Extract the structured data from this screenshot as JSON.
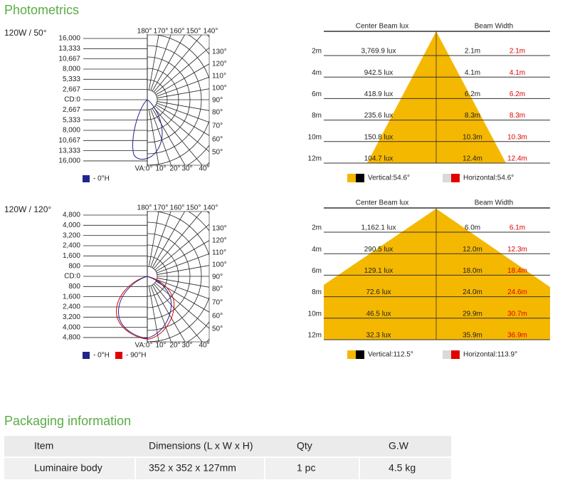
{
  "title": "Photometrics",
  "diagrams": [
    {
      "label": "120W / 50°",
      "polar": {
        "intensity_labels": [
          "16,000",
          "13,333",
          "10,667",
          "8,000",
          "5,333",
          "2,667",
          "CD:0",
          "2,667",
          "5,333",
          "8,000",
          "10,667",
          "13,333",
          "16,000"
        ],
        "top_angles": [
          "180°",
          "170°",
          "160°",
          "150°",
          "140°"
        ],
        "side_angles": [
          "130°",
          "120°",
          "110°",
          "100°",
          "90°",
          "80°",
          "70°",
          "60°",
          "50°"
        ],
        "bottom_angles": [
          "VA:0°",
          "10°",
          "20°",
          "30°",
          "40°"
        ],
        "legend": [
          {
            "label": "- 0°H",
            "color": "#23238e"
          }
        ]
      },
      "beam": {
        "headers": [
          "Center Beam lux",
          "Beam Width"
        ],
        "rows": [
          [
            "2m",
            "3,769.9 lux",
            "2.1m",
            "2.1m"
          ],
          [
            "4m",
            "942.5 lux",
            "4.1m",
            "4.1m"
          ],
          [
            "6m",
            "418.9 lux",
            "6.2m",
            "6.2m"
          ],
          [
            "8m",
            "235.6 lux",
            "8.3m",
            "8.3m"
          ],
          [
            "10m",
            "150.8 lux",
            "10.3m",
            "10.3m"
          ],
          [
            "12m",
            "104.7 lux",
            "12.4m",
            "12.4m"
          ]
        ],
        "legend": [
          {
            "label": "Vertical:54.6°",
            "colors": [
              "#f5b800",
              "#000000"
            ]
          },
          {
            "label": "Horizontal:54.6°",
            "colors": [
              "#d9d9d9",
              "#e00000"
            ]
          }
        ]
      }
    },
    {
      "label": "120W / 120°",
      "polar": {
        "intensity_labels": [
          "4,800",
          "4,000",
          "3,200",
          "2,400",
          "1,600",
          "800",
          "CD:0",
          "800",
          "1,600",
          "2,400",
          "3,200",
          "4,000",
          "4,800"
        ],
        "top_angles": [
          "180°",
          "170°",
          "160°",
          "150°",
          "140°"
        ],
        "side_angles": [
          "130°",
          "120°",
          "110°",
          "100°",
          "90°",
          "80°",
          "70°",
          "60°",
          "50°"
        ],
        "bottom_angles": [
          "VA:0°",
          "10°",
          "20°",
          "30°",
          "40°"
        ],
        "legend": [
          {
            "label": "- 0°H",
            "color": "#23238e"
          },
          {
            "label": "- 90°H",
            "color": "#e00000"
          }
        ]
      },
      "beam": {
        "headers": [
          "Center Beam lux",
          "Beam Width"
        ],
        "rows": [
          [
            "2m",
            "1,162.1 lux",
            "6.0m",
            "6.1m"
          ],
          [
            "4m",
            "290.5 lux",
            "12.0m",
            "12.3m"
          ],
          [
            "6m",
            "129.1 lux",
            "18.0m",
            "18.4m"
          ],
          [
            "8m",
            "72.6 lux",
            "24.0m",
            "24.6m"
          ],
          [
            "10m",
            "46.5 lux",
            "29.9m",
            "30.7m"
          ],
          [
            "12m",
            "32.3 lux",
            "35.9m",
            "36.9m"
          ]
        ],
        "legend": [
          {
            "label": "Vertical:112.5°",
            "colors": [
              "#f5b800",
              "#000000"
            ]
          },
          {
            "label": "Horizontal:113.9°",
            "colors": [
              "#d9d9d9",
              "#e00000"
            ]
          }
        ]
      }
    }
  ],
  "packaging": {
    "title": "Packaging information",
    "headers": [
      "Item",
      "Dimensions (L x W x H)",
      "Qty",
      "G.W"
    ],
    "rows": [
      [
        "Luminaire body",
        "352 x 352 x 127mm",
        "1 pc",
        "4.5 kg"
      ]
    ]
  }
}
